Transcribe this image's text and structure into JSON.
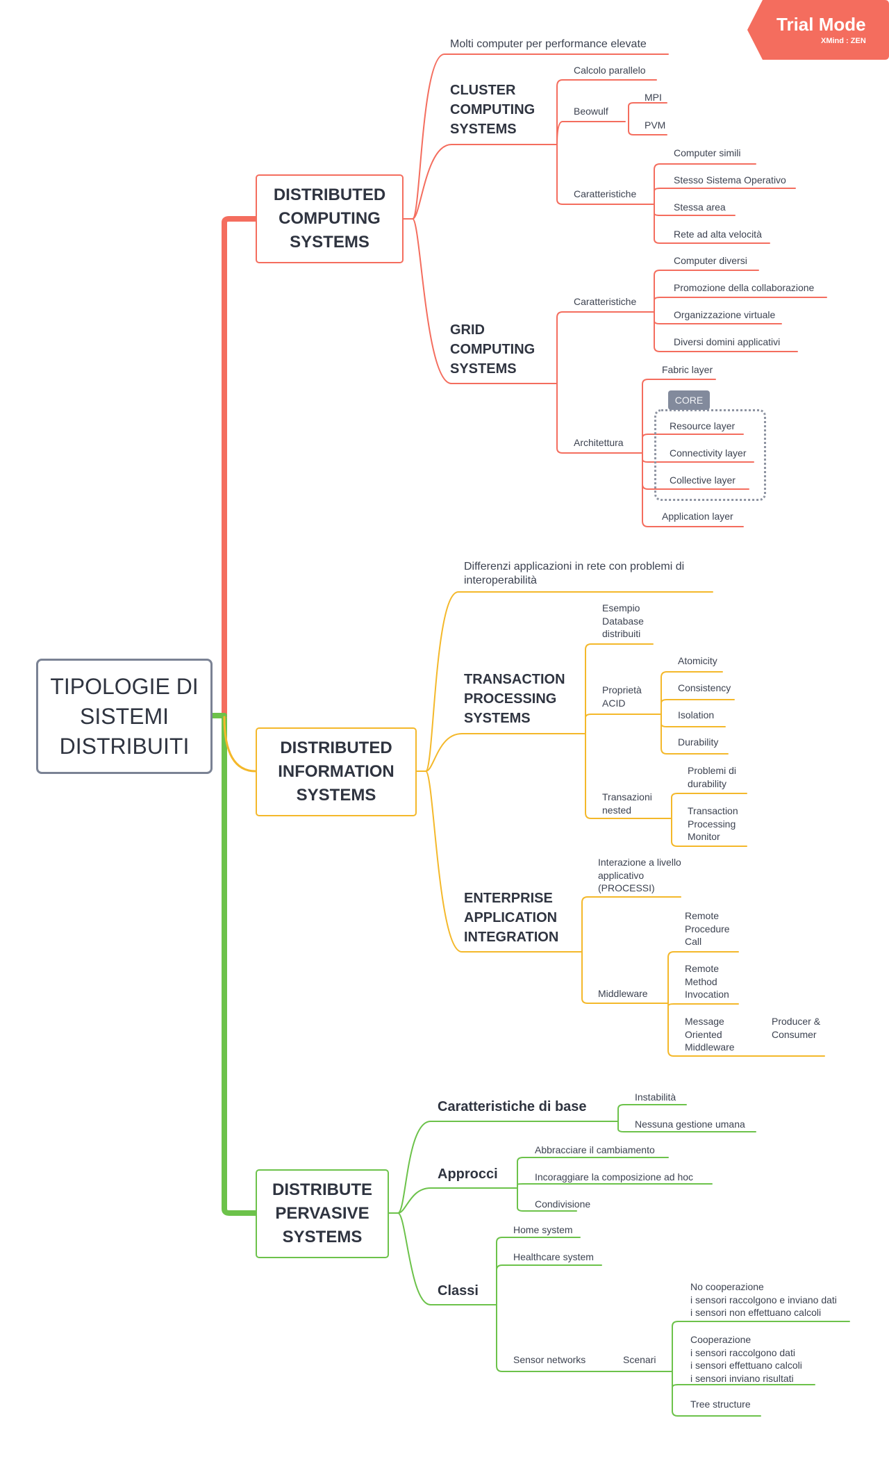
{
  "colors": {
    "red": "#f46d5e",
    "yellow": "#f4b82a",
    "green": "#6cc24a",
    "root_border": "#7a8294"
  },
  "root": "TIPOLOGIE DI SISTEMI DISTRIBUITI",
  "branches": {
    "dcs": "DISTRIBUTED COMPUTING SYSTEMS",
    "dis": "DISTRIBUTED INFORMATION SYSTEMS",
    "dps": "DISTRIBUTE PERVASIVE SYSTEMS"
  },
  "dcs": {
    "molti": "Molti computer per performance elevate",
    "cluster": {
      "title": "CLUSTER COMPUTING SYSTEMS",
      "calcolo": "Calcolo parallelo",
      "beowulf": "Beowulf",
      "mpi": "MPI",
      "pvm": "PVM",
      "caratteristiche": "Caratteristiche",
      "car_items": [
        "Computer simili",
        "Stesso Sistema Operativo",
        "Stessa area",
        "Rete ad alta velocità"
      ]
    },
    "grid": {
      "title": "GRID COMPUTING SYSTEMS",
      "caratteristiche": "Caratteristiche",
      "car_items": [
        "Computer diversi",
        "Promozione della collaborazione",
        "Organizzazione virtuale",
        "Diversi domini applicativi"
      ],
      "architettura": "Architettura",
      "fabric": "Fabric layer",
      "core": "CORE",
      "core_items": [
        "Resource layer",
        "Connectivity layer",
        "Collective layer"
      ],
      "application": "Application layer"
    }
  },
  "dis": {
    "differenze": "Differenzi applicazioni in rete con problemi di interoperabilità",
    "tps": {
      "title": "TRANSACTION PROCESSING SYSTEMS",
      "esempio": "Esempio Database distribuiti",
      "proprieta": "Proprietà ACID",
      "acid": [
        "Atomicity",
        "Consistency",
        "Isolation",
        "Durability"
      ],
      "nested": "Transazioni nested",
      "nested_items": [
        "Problemi di durability",
        "Transaction Processing Monitor"
      ]
    },
    "eai": {
      "title": "ENTERPRISE APPLICATION INTEGRATION",
      "interazione": "Interazione a livello applicativo (PROCESSI)",
      "middleware": "Middleware",
      "mw_items": [
        "Remote Procedure Call",
        "Remote Method Invocation",
        "Message Oriented Middleware"
      ],
      "producer": "Producer & Consumer"
    }
  },
  "dps": {
    "base": "Caratteristiche di base",
    "base_items": [
      "Instabilità",
      "Nessuna gestione umana"
    ],
    "approcci": "Approcci",
    "approcci_items": [
      "Abbracciare il cambiamento",
      "Incoraggiare la composizione ad hoc",
      "Condivisione"
    ],
    "classi": "Classi",
    "classi_items": [
      "Home system",
      "Healthcare system",
      "Sensor networks"
    ],
    "scenari": "Scenari",
    "scenari_items": [
      "No cooperazione\ni sensori raccolgono e inviano dati\ni sensori non effettuano calcoli",
      "Cooperazione\ni sensori raccolgono dati\ni sensori effettuano calcoli\ni sensori inviano risultati",
      "Tree structure"
    ]
  },
  "watermark": {
    "title": "Trial Mode",
    "sub": "XMind : ZEN"
  }
}
